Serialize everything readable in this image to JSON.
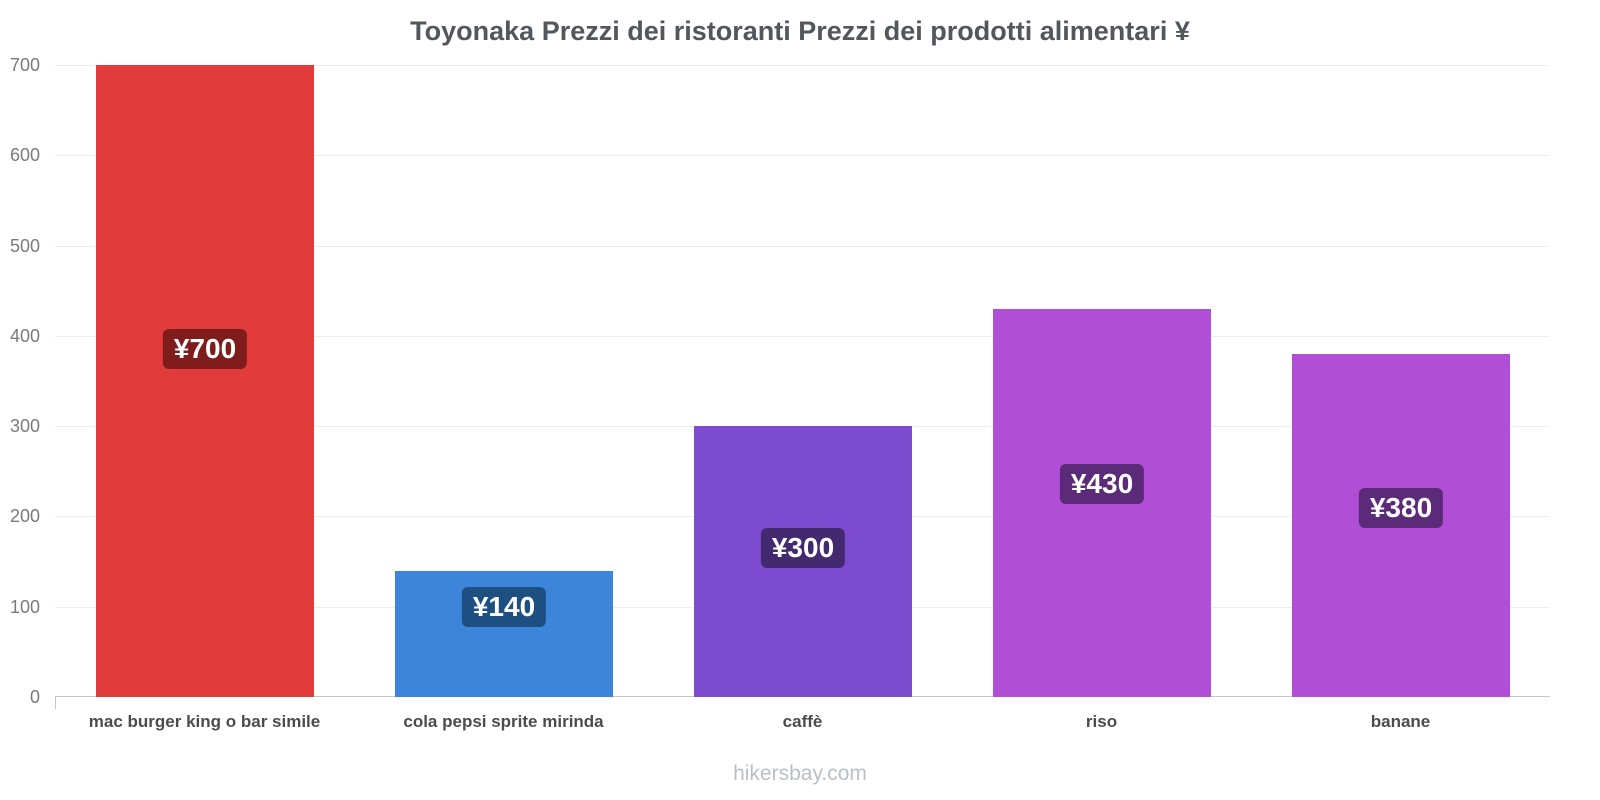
{
  "footer": "hikersbay.com",
  "chart_data": {
    "type": "bar",
    "title": "Toyonaka Prezzi dei ristoranti Prezzi dei prodotti alimentari ¥",
    "categories": [
      "mac burger king o bar simile",
      "cola pepsi sprite mirinda",
      "caffè",
      "riso",
      "banane"
    ],
    "values": [
      700,
      140,
      300,
      430,
      380
    ],
    "value_labels": [
      "¥700",
      "¥140",
      "¥300",
      "¥430",
      "¥380"
    ],
    "bar_colors": [
      "#e23b3b",
      "#3c85da",
      "#7c4bd0",
      "#b04ed6",
      "#b04ed6"
    ],
    "label_colors": [
      "#7f1d1d",
      "#1d5080",
      "#432970",
      "#5b2a78",
      "#5b2a78"
    ],
    "ylim": [
      0,
      700
    ],
    "yticks": [
      0,
      100,
      200,
      300,
      400,
      500,
      600,
      700
    ],
    "xlabel": "",
    "ylabel": "",
    "grid": "horizontal",
    "legend": "none"
  }
}
